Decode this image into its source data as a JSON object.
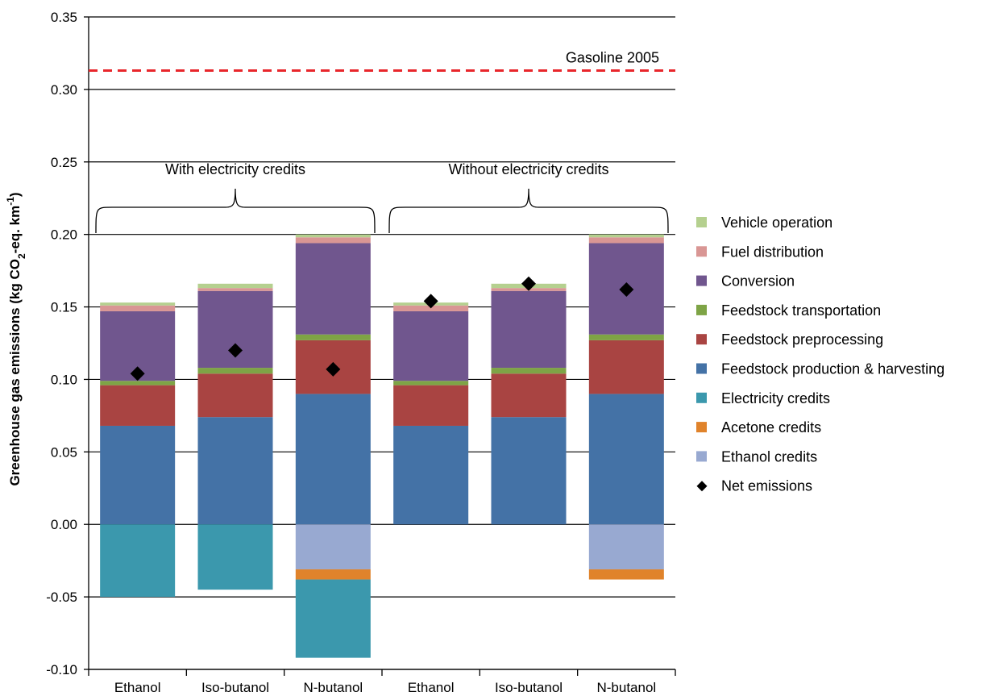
{
  "chart_data": {
    "type": "bar",
    "stacked": true,
    "ylabel": {
      "prefix": "Greenhouse gas emissions (kg CO",
      "sub": "2",
      "mid": "-eq. km",
      "sup": "-1",
      "suffix": ")"
    },
    "ylim": [
      -0.1,
      0.35
    ],
    "yticks": [
      "0.35",
      "0.30",
      "0.25",
      "0.20",
      "0.15",
      "0.10",
      "0.05",
      "0.00",
      "-0.05",
      "-0.10"
    ],
    "ytick_values": [
      0.35,
      0.3,
      0.25,
      0.2,
      0.15,
      0.1,
      0.05,
      0.0,
      -0.05,
      -0.1
    ],
    "grid": true,
    "categories": [
      "Ethanol",
      "Iso-butanol",
      "N-butanol",
      "Ethanol",
      "Iso-butanol",
      "N-butanol"
    ],
    "groups": [
      {
        "label": "With electricity credits",
        "categories": [
          0,
          1,
          2
        ]
      },
      {
        "label": "Without electricity credits",
        "categories": [
          3,
          4,
          5
        ]
      }
    ],
    "reference_line": {
      "label": "Gasoline 2005",
      "value": 0.313,
      "color": "#e8262b"
    },
    "series": [
      {
        "name": "Vehicle operation",
        "color": "#b5d08f",
        "values": [
          0.002,
          0.003,
          0.002,
          0.002,
          0.003,
          0.002
        ]
      },
      {
        "name": "Fuel distribution",
        "color": "#d99694",
        "values": [
          0.004,
          0.002,
          0.004,
          0.004,
          0.002,
          0.004
        ]
      },
      {
        "name": "Conversion",
        "color": "#70568e",
        "values": [
          0.048,
          0.053,
          0.063,
          0.048,
          0.053,
          0.063
        ]
      },
      {
        "name": "Feedstock transportation",
        "color": "#7ea446",
        "values": [
          0.003,
          0.004,
          0.004,
          0.003,
          0.004,
          0.004
        ]
      },
      {
        "name": "Feedstock preprocessing",
        "color": "#a94442",
        "values": [
          0.028,
          0.03,
          0.037,
          0.028,
          0.03,
          0.037
        ]
      },
      {
        "name": "Feedstock production & harvesting",
        "color": "#4472a6",
        "values": [
          0.068,
          0.074,
          0.09,
          0.068,
          0.074,
          0.09
        ]
      },
      {
        "name": "Electricity credits",
        "color": "#3b98ad",
        "values": [
          -0.05,
          -0.045,
          -0.054,
          0,
          0,
          0
        ]
      },
      {
        "name": "Acetone credits",
        "color": "#e0832b",
        "values": [
          0,
          0,
          -0.007,
          0,
          0,
          -0.007
        ]
      },
      {
        "name": "Ethanol credits",
        "color": "#98a9d1",
        "values": [
          0,
          0,
          -0.031,
          0,
          0,
          -0.031
        ]
      }
    ],
    "positive_order": [
      "Feedstock production & harvesting",
      "Feedstock preprocessing",
      "Feedstock transportation",
      "Conversion",
      "Fuel distribution",
      "Vehicle operation"
    ],
    "negative_order": [
      "Ethanol credits",
      "Acetone credits",
      "Electricity credits"
    ],
    "net_emissions": {
      "name": "Net emissions",
      "values": [
        0.104,
        0.12,
        0.107,
        0.154,
        0.166,
        0.162
      ]
    },
    "legend": {
      "position": "right",
      "items": [
        "Vehicle operation",
        "Fuel distribution",
        "Conversion",
        "Feedstock transportation",
        "Feedstock preprocessing",
        "Feedstock production & harvesting",
        "Electricity credits",
        "Acetone credits",
        "Ethanol credits",
        "Net emissions"
      ]
    }
  }
}
